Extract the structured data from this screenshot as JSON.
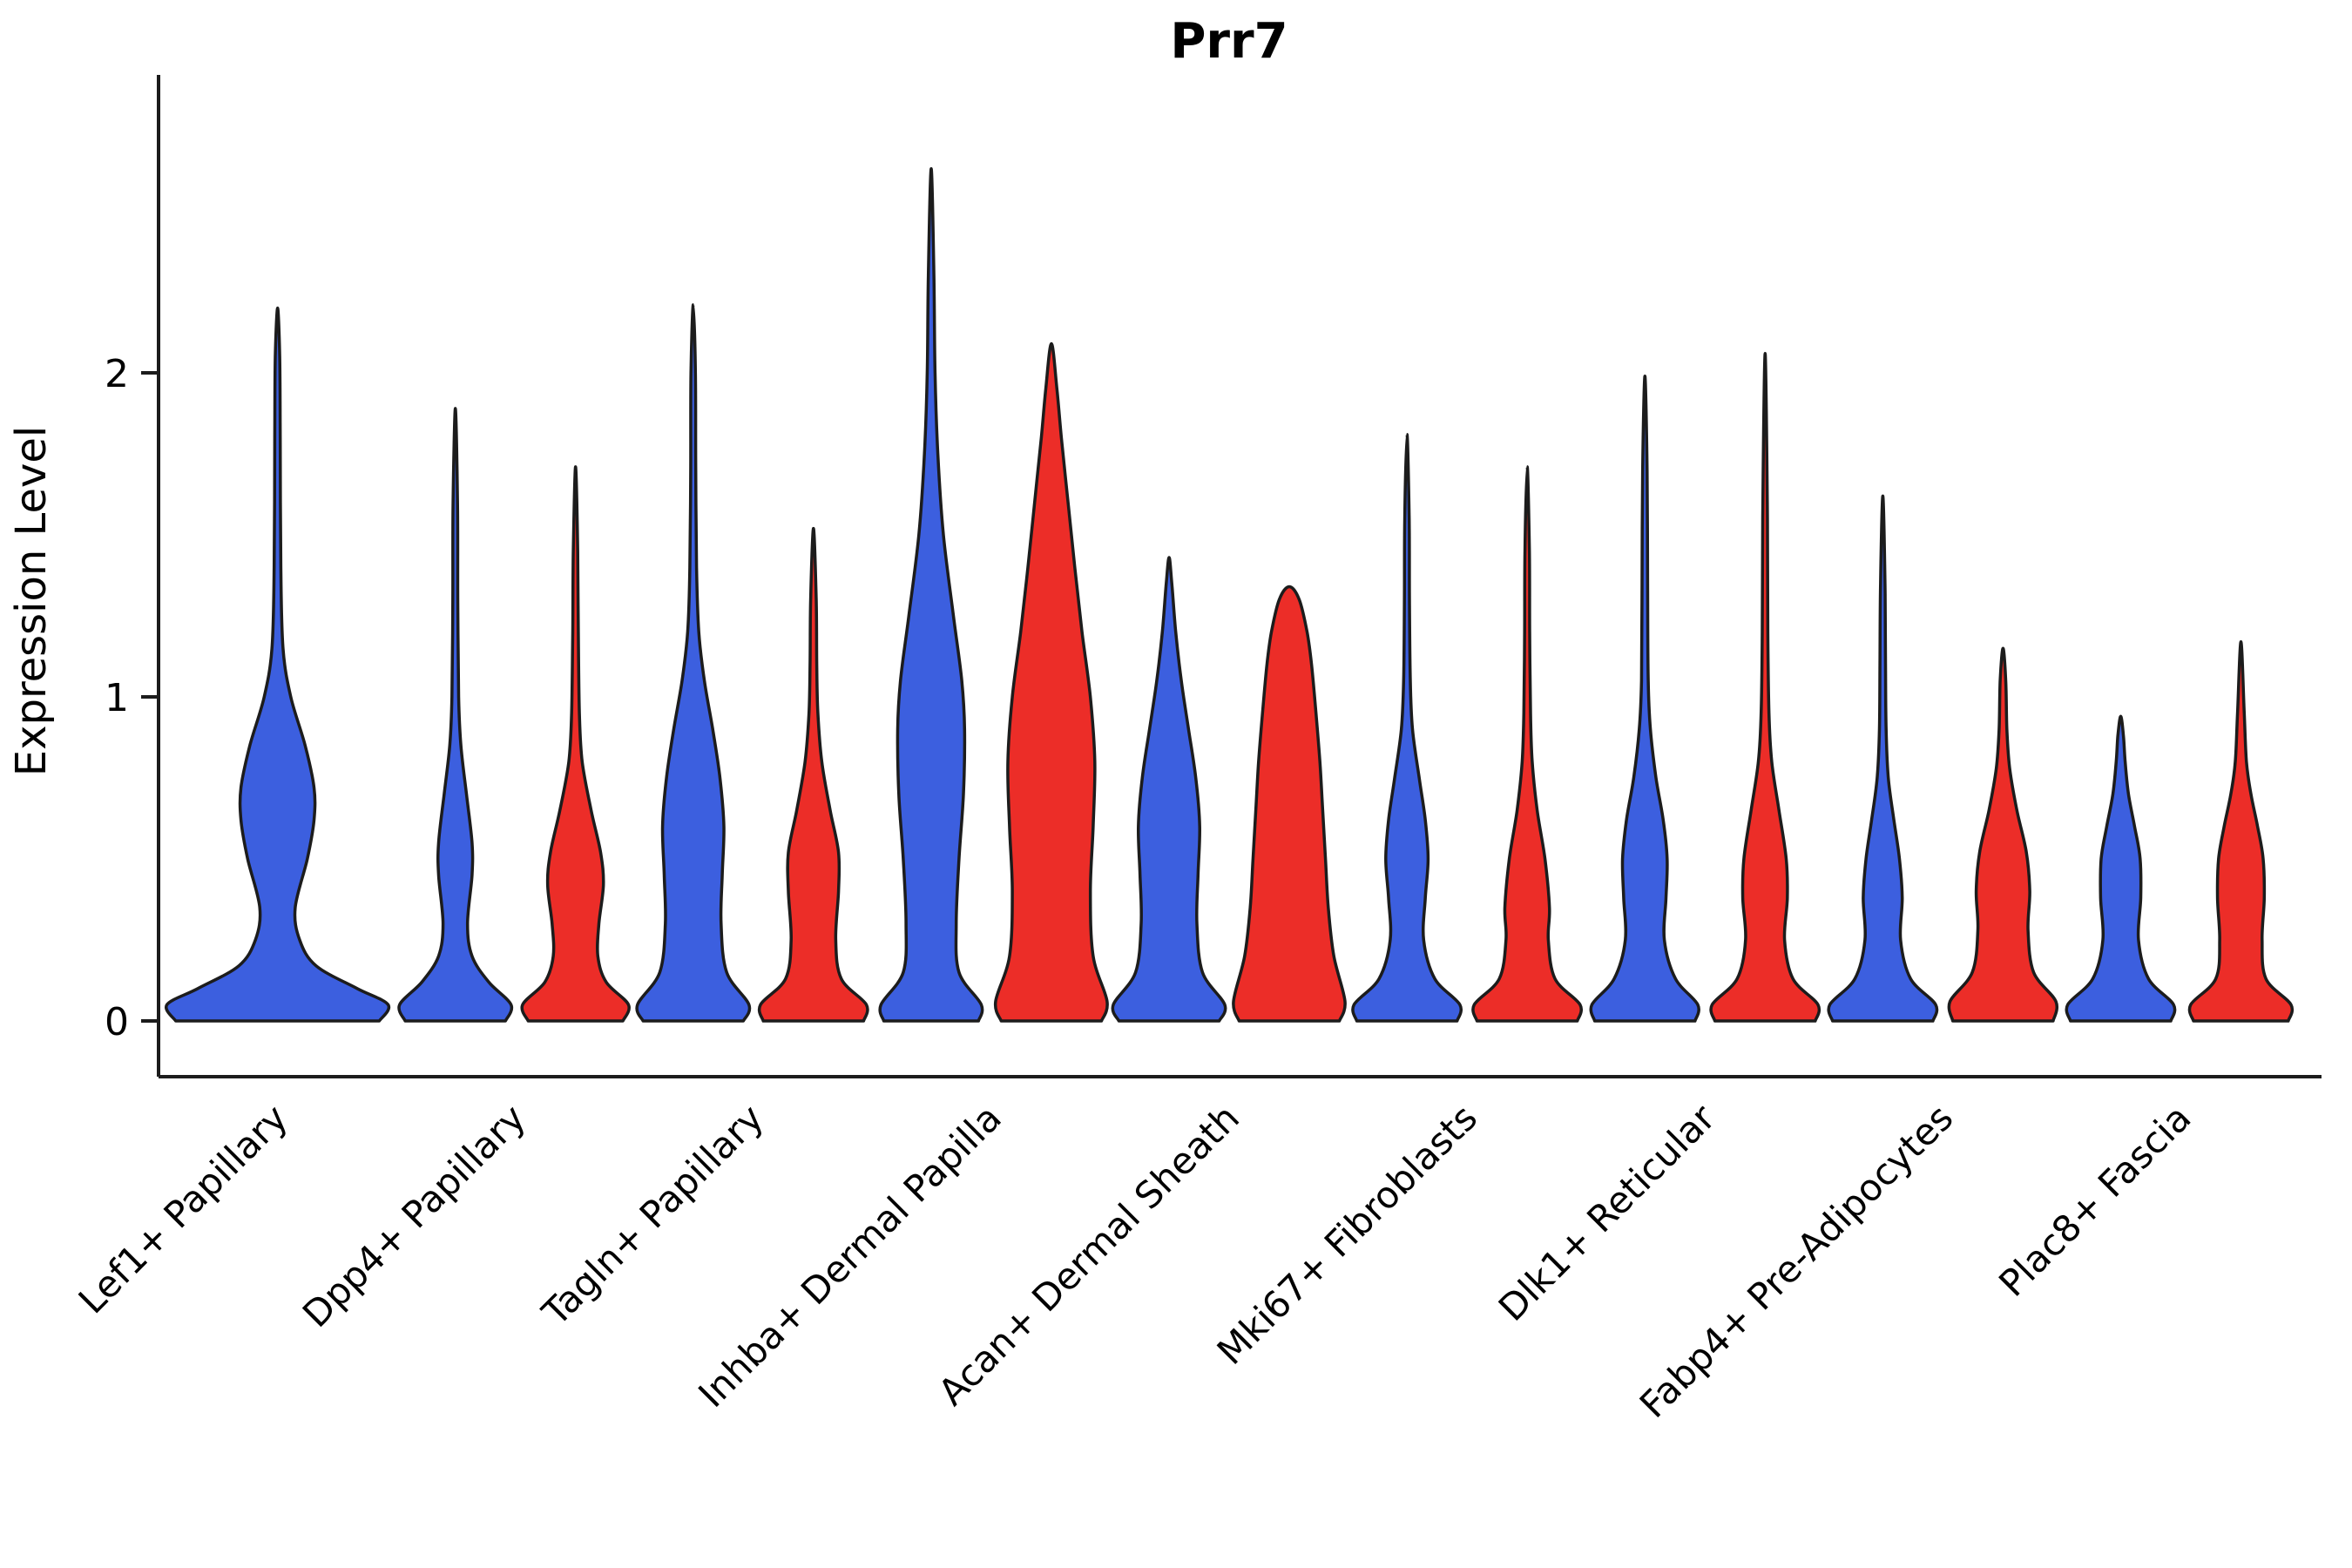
{
  "chart_data": {
    "type": "violin",
    "orientation": "vertical",
    "title": "Prr7",
    "xlabel": "",
    "ylabel": "Expression Level",
    "grid": false,
    "legend": "none",
    "yticks": [
      0,
      1,
      2
    ],
    "ylim": [
      -0.17,
      2.92
    ],
    "categories": [
      "Lef1+ Papillary",
      "Dpp4+ Papillary",
      "Tagln+ Papillary",
      "Inhba+ Dermal Papilla",
      "Acan+ Dermal Sheath",
      "Mki67+ Fibroblasts",
      "Dlk1+ Reticular",
      "Fabp4+ Pre-Adipocytes",
      "Plac8+ Fascia"
    ],
    "colors": {
      "blue": "#3C5FDF",
      "red": "#EC2D28",
      "stroke": "#1C1C1C"
    },
    "violins": [
      {
        "category": "Lef1+ Papillary",
        "side": "center",
        "color": "blue",
        "max": 2.2,
        "profile": [
          [
            0,
            0.92
          ],
          [
            0.05,
            1.0
          ],
          [
            0.1,
            0.72
          ],
          [
            0.17,
            0.35
          ],
          [
            0.25,
            0.2
          ],
          [
            0.35,
            0.16
          ],
          [
            0.5,
            0.27
          ],
          [
            0.62,
            0.33
          ],
          [
            0.72,
            0.33
          ],
          [
            0.85,
            0.25
          ],
          [
            1.0,
            0.12
          ],
          [
            1.15,
            0.05
          ],
          [
            1.4,
            0.03
          ],
          [
            1.8,
            0.025
          ],
          [
            2.05,
            0.02
          ],
          [
            2.2,
            0.001
          ]
        ]
      },
      {
        "category": "Dpp4+ Papillary",
        "side": "left",
        "color": "blue",
        "max": 1.89,
        "profile": [
          [
            0,
            0.9
          ],
          [
            0.05,
            1.0
          ],
          [
            0.12,
            0.6
          ],
          [
            0.2,
            0.3
          ],
          [
            0.3,
            0.22
          ],
          [
            0.45,
            0.3
          ],
          [
            0.55,
            0.3
          ],
          [
            0.7,
            0.2
          ],
          [
            0.85,
            0.1
          ],
          [
            1.0,
            0.06
          ],
          [
            1.3,
            0.045
          ],
          [
            1.6,
            0.04
          ],
          [
            1.89,
            0.001
          ]
        ]
      },
      {
        "category": "Dpp4+ Papillary",
        "side": "right",
        "color": "red",
        "max": 1.71,
        "profile": [
          [
            0,
            0.85
          ],
          [
            0.05,
            0.95
          ],
          [
            0.12,
            0.55
          ],
          [
            0.2,
            0.4
          ],
          [
            0.3,
            0.42
          ],
          [
            0.42,
            0.5
          ],
          [
            0.52,
            0.45
          ],
          [
            0.65,
            0.28
          ],
          [
            0.8,
            0.12
          ],
          [
            0.95,
            0.07
          ],
          [
            1.2,
            0.05
          ],
          [
            1.45,
            0.04
          ],
          [
            1.71,
            0.001
          ]
        ]
      },
      {
        "category": "Tagln+ Papillary",
        "side": "left",
        "color": "blue",
        "max": 2.21,
        "profile": [
          [
            0,
            0.9
          ],
          [
            0.05,
            1.0
          ],
          [
            0.15,
            0.6
          ],
          [
            0.3,
            0.5
          ],
          [
            0.45,
            0.52
          ],
          [
            0.6,
            0.55
          ],
          [
            0.75,
            0.48
          ],
          [
            0.9,
            0.35
          ],
          [
            1.05,
            0.2
          ],
          [
            1.2,
            0.1
          ],
          [
            1.4,
            0.06
          ],
          [
            1.7,
            0.045
          ],
          [
            2.0,
            0.04
          ],
          [
            2.21,
            0.001
          ]
        ]
      },
      {
        "category": "Tagln+ Papillary",
        "side": "right",
        "color": "red",
        "max": 1.52,
        "profile": [
          [
            0,
            0.9
          ],
          [
            0.05,
            0.95
          ],
          [
            0.13,
            0.5
          ],
          [
            0.25,
            0.4
          ],
          [
            0.4,
            0.45
          ],
          [
            0.52,
            0.45
          ],
          [
            0.65,
            0.3
          ],
          [
            0.8,
            0.15
          ],
          [
            0.95,
            0.08
          ],
          [
            1.1,
            0.06
          ],
          [
            1.3,
            0.05
          ],
          [
            1.52,
            0.001
          ]
        ]
      },
      {
        "category": "Inhba+ Dermal Papilla",
        "side": "left",
        "color": "blue",
        "max": 2.63,
        "profile": [
          [
            0,
            0.85
          ],
          [
            0.05,
            0.9
          ],
          [
            0.15,
            0.5
          ],
          [
            0.3,
            0.45
          ],
          [
            0.5,
            0.5
          ],
          [
            0.7,
            0.58
          ],
          [
            0.9,
            0.6
          ],
          [
            1.05,
            0.55
          ],
          [
            1.25,
            0.4
          ],
          [
            1.5,
            0.22
          ],
          [
            1.75,
            0.12
          ],
          [
            2.0,
            0.07
          ],
          [
            2.3,
            0.05
          ],
          [
            2.63,
            0.001
          ]
        ]
      },
      {
        "category": "Inhba+ Dermal Papilla",
        "side": "right",
        "color": "red",
        "max": 2.09,
        "profile": [
          [
            0,
            0.9
          ],
          [
            0.06,
            1.0
          ],
          [
            0.2,
            0.75
          ],
          [
            0.4,
            0.7
          ],
          [
            0.6,
            0.75
          ],
          [
            0.8,
            0.78
          ],
          [
            1.0,
            0.7
          ],
          [
            1.2,
            0.55
          ],
          [
            1.4,
            0.42
          ],
          [
            1.6,
            0.3
          ],
          [
            1.8,
            0.18
          ],
          [
            1.95,
            0.1
          ],
          [
            2.09,
            0.001
          ]
        ]
      },
      {
        "category": "Acan+ Dermal Sheath",
        "side": "left",
        "color": "blue",
        "max": 1.43,
        "profile": [
          [
            0,
            0.9
          ],
          [
            0.05,
            1.0
          ],
          [
            0.15,
            0.6
          ],
          [
            0.3,
            0.5
          ],
          [
            0.45,
            0.52
          ],
          [
            0.6,
            0.55
          ],
          [
            0.75,
            0.48
          ],
          [
            0.9,
            0.35
          ],
          [
            1.05,
            0.22
          ],
          [
            1.2,
            0.12
          ],
          [
            1.35,
            0.05
          ],
          [
            1.43,
            0.001
          ]
        ]
      },
      {
        "category": "Acan+ Dermal Sheath",
        "side": "right",
        "color": "red",
        "max": 1.34,
        "profile": [
          [
            0,
            0.9
          ],
          [
            0.06,
            1.0
          ],
          [
            0.2,
            0.8
          ],
          [
            0.35,
            0.7
          ],
          [
            0.5,
            0.65
          ],
          [
            0.65,
            0.6
          ],
          [
            0.8,
            0.55
          ],
          [
            0.95,
            0.48
          ],
          [
            1.1,
            0.4
          ],
          [
            1.2,
            0.32
          ],
          [
            1.3,
            0.18
          ],
          [
            1.34,
            0.001
          ]
        ]
      },
      {
        "category": "Mki67+ Fibroblasts",
        "side": "left",
        "color": "blue",
        "max": 1.81,
        "profile": [
          [
            0,
            0.9
          ],
          [
            0.05,
            0.95
          ],
          [
            0.13,
            0.5
          ],
          [
            0.25,
            0.3
          ],
          [
            0.38,
            0.33
          ],
          [
            0.5,
            0.38
          ],
          [
            0.62,
            0.33
          ],
          [
            0.75,
            0.22
          ],
          [
            0.9,
            0.1
          ],
          [
            1.05,
            0.06
          ],
          [
            1.3,
            0.045
          ],
          [
            1.55,
            0.04
          ],
          [
            1.81,
            0.001
          ]
        ]
      },
      {
        "category": "Mki67+ Fibroblasts",
        "side": "right",
        "color": "red",
        "max": 1.71,
        "profile": [
          [
            0,
            0.9
          ],
          [
            0.05,
            0.95
          ],
          [
            0.13,
            0.5
          ],
          [
            0.25,
            0.38
          ],
          [
            0.35,
            0.4
          ],
          [
            0.5,
            0.32
          ],
          [
            0.65,
            0.18
          ],
          [
            0.8,
            0.09
          ],
          [
            0.95,
            0.06
          ],
          [
            1.2,
            0.045
          ],
          [
            1.45,
            0.04
          ],
          [
            1.71,
            0.001
          ]
        ]
      },
      {
        "category": "Dlk1+ Reticular",
        "side": "left",
        "color": "blue",
        "max": 1.99,
        "profile": [
          [
            0,
            0.9
          ],
          [
            0.05,
            0.95
          ],
          [
            0.13,
            0.55
          ],
          [
            0.25,
            0.35
          ],
          [
            0.38,
            0.38
          ],
          [
            0.5,
            0.4
          ],
          [
            0.62,
            0.33
          ],
          [
            0.75,
            0.2
          ],
          [
            0.9,
            0.1
          ],
          [
            1.05,
            0.06
          ],
          [
            1.35,
            0.05
          ],
          [
            1.7,
            0.04
          ],
          [
            1.99,
            0.001
          ]
        ]
      },
      {
        "category": "Dlk1+ Reticular",
        "side": "right",
        "color": "red",
        "max": 2.06,
        "profile": [
          [
            0,
            0.9
          ],
          [
            0.05,
            0.95
          ],
          [
            0.13,
            0.5
          ],
          [
            0.25,
            0.35
          ],
          [
            0.38,
            0.4
          ],
          [
            0.5,
            0.38
          ],
          [
            0.65,
            0.25
          ],
          [
            0.8,
            0.12
          ],
          [
            0.95,
            0.07
          ],
          [
            1.2,
            0.05
          ],
          [
            1.6,
            0.04
          ],
          [
            2.06,
            0.001
          ]
        ]
      },
      {
        "category": "Fabp4+ Pre-Adipocytes",
        "side": "left",
        "color": "blue",
        "max": 1.62,
        "profile": [
          [
            0,
            0.9
          ],
          [
            0.05,
            0.95
          ],
          [
            0.13,
            0.5
          ],
          [
            0.25,
            0.32
          ],
          [
            0.38,
            0.35
          ],
          [
            0.5,
            0.3
          ],
          [
            0.62,
            0.2
          ],
          [
            0.75,
            0.1
          ],
          [
            0.9,
            0.06
          ],
          [
            1.1,
            0.05
          ],
          [
            1.35,
            0.04
          ],
          [
            1.62,
            0.001
          ]
        ]
      },
      {
        "category": "Fabp4+ Pre-Adipocytes",
        "side": "right",
        "color": "red",
        "max": 1.15,
        "profile": [
          [
            0,
            0.9
          ],
          [
            0.06,
            0.95
          ],
          [
            0.15,
            0.55
          ],
          [
            0.28,
            0.45
          ],
          [
            0.4,
            0.48
          ],
          [
            0.52,
            0.42
          ],
          [
            0.65,
            0.25
          ],
          [
            0.78,
            0.12
          ],
          [
            0.9,
            0.07
          ],
          [
            1.05,
            0.05
          ],
          [
            1.15,
            0.001
          ]
        ]
      },
      {
        "category": "Plac8+ Fascia",
        "side": "left",
        "color": "blue",
        "max": 0.94,
        "profile": [
          [
            0,
            0.9
          ],
          [
            0.05,
            0.95
          ],
          [
            0.13,
            0.5
          ],
          [
            0.25,
            0.32
          ],
          [
            0.38,
            0.36
          ],
          [
            0.5,
            0.35
          ],
          [
            0.6,
            0.25
          ],
          [
            0.7,
            0.14
          ],
          [
            0.8,
            0.08
          ],
          [
            0.88,
            0.05
          ],
          [
            0.94,
            0.001
          ]
        ]
      },
      {
        "category": "Plac8+ Fascia",
        "side": "right",
        "color": "red",
        "max": 1.17,
        "profile": [
          [
            0,
            0.85
          ],
          [
            0.05,
            0.9
          ],
          [
            0.13,
            0.45
          ],
          [
            0.25,
            0.38
          ],
          [
            0.38,
            0.42
          ],
          [
            0.5,
            0.4
          ],
          [
            0.6,
            0.3
          ],
          [
            0.7,
            0.18
          ],
          [
            0.8,
            0.1
          ],
          [
            0.95,
            0.06
          ],
          [
            1.17,
            0.001
          ]
        ]
      }
    ]
  }
}
